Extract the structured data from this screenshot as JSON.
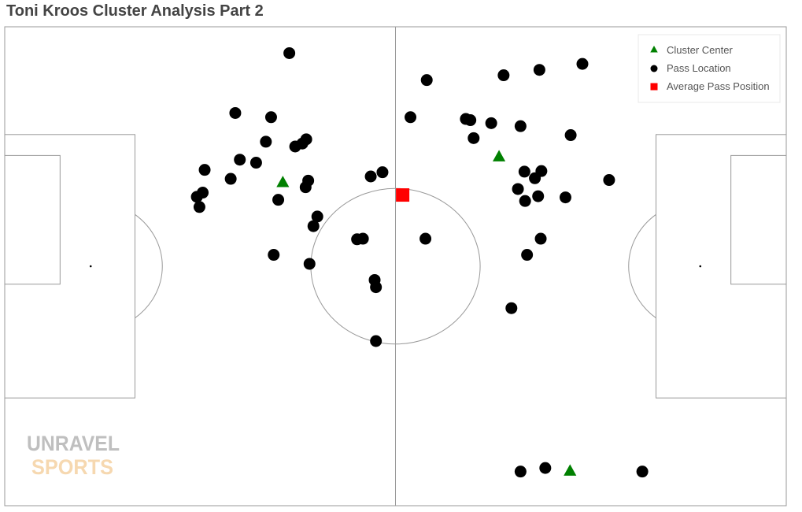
{
  "chart_data": {
    "type": "scatter",
    "title": "Toni Kroos Cluster Analysis Part 2",
    "x_range": [
      0,
      120
    ],
    "y_range": [
      0,
      80
    ],
    "grid": false,
    "legend_position": "top-right",
    "legend": [
      {
        "label": "Cluster Center",
        "marker": "triangle",
        "color": "#008000"
      },
      {
        "label": "Pass Location",
        "marker": "circle",
        "color": "#000000"
      },
      {
        "label": "Average Pass Position",
        "marker": "square",
        "color": "#ff0000"
      }
    ],
    "series": [
      {
        "name": "Pass Location",
        "marker": "circle",
        "color": "#000000",
        "points": [
          [
            43.7,
            75.6
          ],
          [
            35.4,
            65.6
          ],
          [
            40.9,
            64.9
          ],
          [
            40.1,
            60.8
          ],
          [
            44.6,
            60.0
          ],
          [
            45.7,
            60.5
          ],
          [
            46.3,
            61.2
          ],
          [
            36.1,
            57.8
          ],
          [
            38.6,
            57.3
          ],
          [
            30.7,
            56.1
          ],
          [
            34.7,
            54.6
          ],
          [
            46.6,
            54.3
          ],
          [
            46.2,
            53.2
          ],
          [
            30.4,
            52.3
          ],
          [
            42.0,
            51.1
          ],
          [
            29.9,
            49.9
          ],
          [
            48.0,
            48.3
          ],
          [
            47.4,
            46.7
          ],
          [
            41.3,
            41.9
          ],
          [
            46.8,
            40.4
          ],
          [
            29.5,
            51.6
          ],
          [
            56.2,
            55.0
          ],
          [
            58.0,
            55.7
          ],
          [
            54.1,
            44.5
          ],
          [
            55.0,
            44.6
          ],
          [
            56.8,
            37.7
          ],
          [
            57.0,
            36.5
          ],
          [
            57.0,
            27.5
          ],
          [
            64.8,
            71.1
          ],
          [
            62.3,
            64.9
          ],
          [
            70.8,
            64.6
          ],
          [
            71.5,
            64.4
          ],
          [
            74.7,
            63.9
          ],
          [
            72.0,
            61.4
          ],
          [
            76.6,
            71.9
          ],
          [
            79.2,
            63.4
          ],
          [
            82.1,
            72.8
          ],
          [
            88.7,
            73.8
          ],
          [
            86.9,
            61.9
          ],
          [
            79.8,
            55.8
          ],
          [
            82.4,
            55.9
          ],
          [
            81.4,
            54.7
          ],
          [
            92.8,
            54.4
          ],
          [
            78.8,
            52.9
          ],
          [
            81.9,
            51.7
          ],
          [
            79.9,
            50.9
          ],
          [
            86.1,
            51.5
          ],
          [
            64.6,
            44.6
          ],
          [
            82.3,
            44.6
          ],
          [
            80.2,
            41.9
          ],
          [
            77.8,
            33.0
          ],
          [
            79.2,
            5.7
          ],
          [
            83.0,
            6.3
          ],
          [
            97.9,
            5.7
          ]
        ]
      },
      {
        "name": "Cluster Center",
        "marker": "triangle",
        "color": "#008000",
        "points": [
          [
            42.7,
            54.0
          ],
          [
            75.9,
            58.3
          ],
          [
            86.8,
            5.8
          ]
        ]
      },
      {
        "name": "Average Pass Position",
        "marker": "square",
        "color": "#ff0000",
        "points": [
          [
            61.1,
            51.9
          ]
        ]
      }
    ]
  },
  "logo": {
    "line1": "UNRAVEL",
    "line2": "SPORTS",
    "color1": "#bfbfbf",
    "color2": "#f6d8b0"
  },
  "colors": {
    "pitch_line": "#999999",
    "background": "#ffffff"
  }
}
